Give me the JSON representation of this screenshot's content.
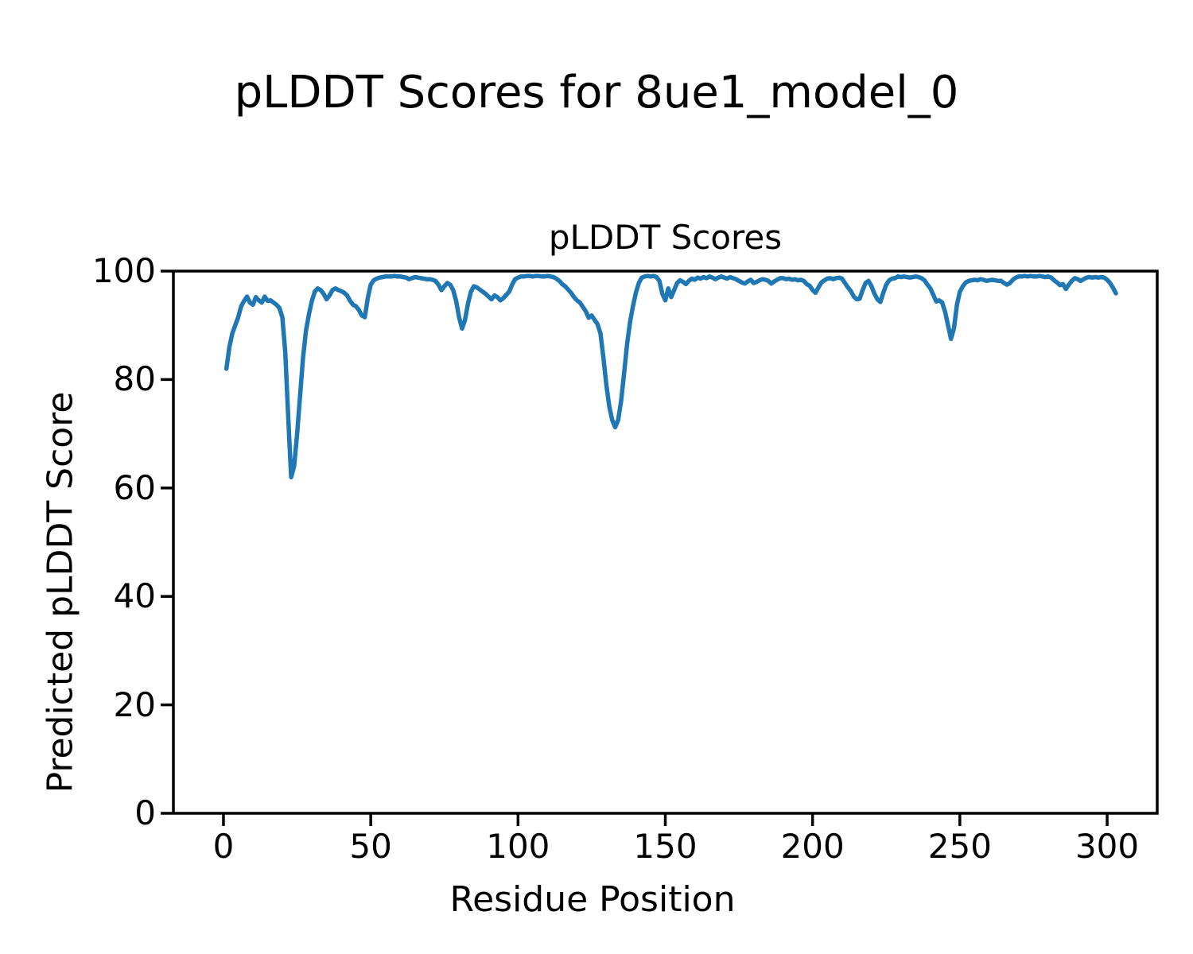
{
  "chart_data": {
    "type": "line",
    "suptitle": "pLDDT Scores for 8ue1_model_0",
    "title": "pLDDT Scores",
    "xlabel": "Residue Position",
    "ylabel": "Predicted pLDDT Score",
    "xlim": [
      -17,
      317
    ],
    "ylim": [
      0,
      100
    ],
    "xticks": [
      0,
      50,
      100,
      150,
      200,
      250,
      300
    ],
    "yticks": [
      0,
      20,
      40,
      60,
      80,
      100
    ],
    "grid": false,
    "legend": "none",
    "line_color": "#1f77b4",
    "axis_color": "#000000",
    "background_color": "#ffffff",
    "series": [
      {
        "name": "pLDDT",
        "x_start": 1,
        "values": [
          82.0,
          86.0,
          88.5,
          90.0,
          91.5,
          93.5,
          94.5,
          95.3,
          94.2,
          93.8,
          95.2,
          94.6,
          94.2,
          95.3,
          94.5,
          94.6,
          94.2,
          93.8,
          93.2,
          91.5,
          85.0,
          73.0,
          62.0,
          64.0,
          70.0,
          77.0,
          84.0,
          89.0,
          92.0,
          94.5,
          96.2,
          96.8,
          96.5,
          95.8,
          94.8,
          95.5,
          96.5,
          96.8,
          96.5,
          96.3,
          96.0,
          95.5,
          94.5,
          93.8,
          93.5,
          92.8,
          91.8,
          91.5,
          95.0,
          97.5,
          98.3,
          98.6,
          98.8,
          98.9,
          99.0,
          99.0,
          99.0,
          99.1,
          99.0,
          99.0,
          98.9,
          98.8,
          98.5,
          98.7,
          98.9,
          98.8,
          98.7,
          98.6,
          98.5,
          98.5,
          98.4,
          98.2,
          97.5,
          96.5,
          97.2,
          97.8,
          97.5,
          96.5,
          94.5,
          91.5,
          89.4,
          91.0,
          94.0,
          96.2,
          97.2,
          97.0,
          96.6,
          96.2,
          95.8,
          95.3,
          94.8,
          95.5,
          95.2,
          94.6,
          95.0,
          95.6,
          96.2,
          97.5,
          98.5,
          98.8,
          99.0,
          99.0,
          99.1,
          99.1,
          99.0,
          99.1,
          99.1,
          99.0,
          99.0,
          99.1,
          99.0,
          98.9,
          98.6,
          98.2,
          97.6,
          97.2,
          96.6,
          96.0,
          95.2,
          94.6,
          94.2,
          93.4,
          92.6,
          91.4,
          91.8,
          91.0,
          90.2,
          88.5,
          84.0,
          79.0,
          75.0,
          72.5,
          71.2,
          72.5,
          76.0,
          81.0,
          86.5,
          90.5,
          93.5,
          96.0,
          97.8,
          98.8,
          99.0,
          99.1,
          99.0,
          99.1,
          98.9,
          98.2,
          95.8,
          94.6,
          96.8,
          95.2,
          96.5,
          97.8,
          98.3,
          98.0,
          97.6,
          98.2,
          98.6,
          98.4,
          98.8,
          98.6,
          98.9,
          98.7,
          99.0,
          98.8,
          98.5,
          98.8,
          99.0,
          98.8,
          98.6,
          98.9,
          98.7,
          98.5,
          98.2,
          97.9,
          97.7,
          98.1,
          98.4,
          97.8,
          98.0,
          98.3,
          98.5,
          98.4,
          98.2,
          97.7,
          98.1,
          98.4,
          98.7,
          98.7,
          98.5,
          98.6,
          98.4,
          98.5,
          98.3,
          98.4,
          98.2,
          97.6,
          97.3,
          96.5,
          96.0,
          97.0,
          97.9,
          98.3,
          98.6,
          98.7,
          98.5,
          98.7,
          98.8,
          98.6,
          97.8,
          97.0,
          96.3,
          95.3,
          94.8,
          94.9,
          96.5,
          97.8,
          98.2,
          97.2,
          95.8,
          94.8,
          94.3,
          96.0,
          97.5,
          98.3,
          98.6,
          98.7,
          99.0,
          98.9,
          99.0,
          98.9,
          98.8,
          98.9,
          99.0,
          98.9,
          98.7,
          98.3,
          97.5,
          96.8,
          95.6,
          94.4,
          94.6,
          94.2,
          92.5,
          90.0,
          87.5,
          89.5,
          93.8,
          96.2,
          97.2,
          97.9,
          98.2,
          98.3,
          98.4,
          98.3,
          98.5,
          98.4,
          98.2,
          98.3,
          98.4,
          98.3,
          98.2,
          98.2,
          97.8,
          97.5,
          97.8,
          98.4,
          98.8,
          99.0,
          99.0,
          99.1,
          99.0,
          99.1,
          99.0,
          99.0,
          99.1,
          99.0,
          98.9,
          99.0,
          98.8,
          98.3,
          97.9,
          97.4,
          97.6,
          96.7,
          97.5,
          98.2,
          98.7,
          98.5,
          98.2,
          98.5,
          98.8,
          98.9,
          98.8,
          98.9,
          98.8,
          98.9,
          98.8,
          98.4,
          97.8,
          96.9,
          95.9
        ]
      }
    ]
  }
}
